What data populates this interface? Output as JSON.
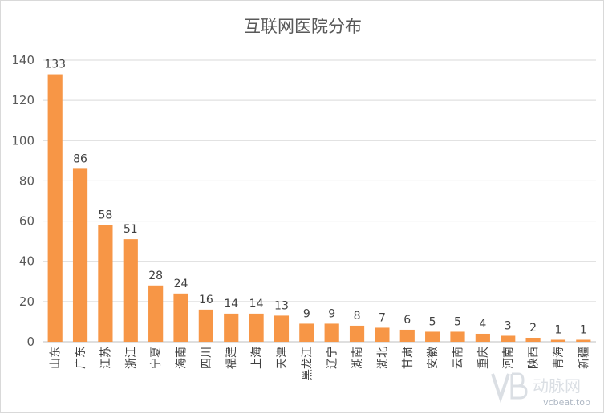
{
  "chart_data": {
    "type": "bar",
    "title": "互联网医院分布",
    "categories": [
      "山东",
      "广东",
      "江苏",
      "浙江",
      "宁夏",
      "海南",
      "四川",
      "福建",
      "上海",
      "天津",
      "黑龙江",
      "辽宁",
      "湖南",
      "湖北",
      "甘肃",
      "安徽",
      "云南",
      "重庆",
      "河南",
      "陕西",
      "青海",
      "新疆"
    ],
    "values": [
      133,
      86,
      58,
      51,
      28,
      24,
      16,
      14,
      14,
      13,
      9,
      9,
      8,
      7,
      6,
      5,
      5,
      4,
      3,
      2,
      1,
      1
    ],
    "ylim": [
      0,
      140
    ],
    "yticks": [
      0,
      20,
      40,
      60,
      80,
      100,
      120,
      140
    ],
    "grid": true,
    "bar_color": "#F79646",
    "grid_color": "#d9d9d9"
  },
  "watermark": {
    "text": "动脉网",
    "url": "vcbeat.top"
  }
}
